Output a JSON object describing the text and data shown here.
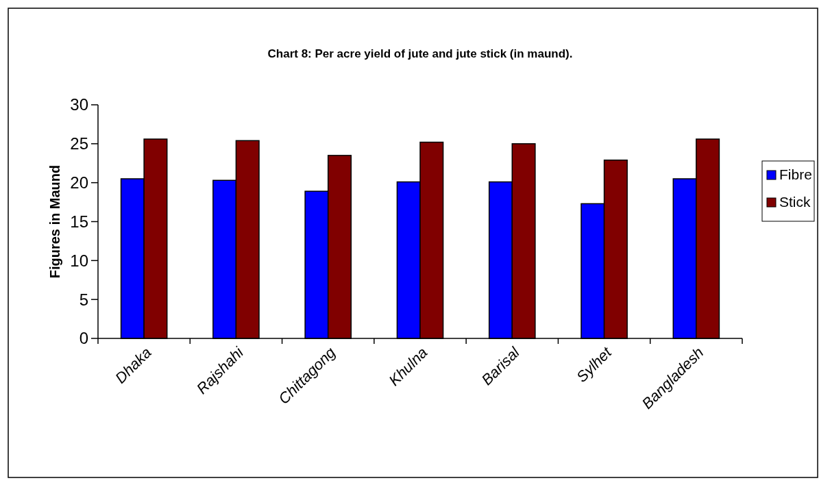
{
  "chart_data": {
    "type": "bar",
    "title": "Chart 8: Per acre yield of jute and jute stick (in maund).",
    "ylabel": "Figures in Maund",
    "categories": [
      "Dhaka",
      "Rajshahi",
      "Chittagong",
      "Khulna",
      "Barisal",
      "Sylhet",
      "Bangladesh"
    ],
    "series": [
      {
        "name": "Fibre",
        "color": "#0000ff",
        "values": [
          20.5,
          20.3,
          18.9,
          20.1,
          20.1,
          17.3,
          20.5
        ]
      },
      {
        "name": "Stick",
        "color": "#800000",
        "values": [
          25.6,
          25.4,
          23.5,
          25.2,
          25.0,
          22.9,
          25.6
        ]
      }
    ],
    "ylim": [
      0,
      30
    ],
    "yticks": [
      0,
      5,
      10,
      15,
      20,
      25,
      30
    ],
    "legend": "right"
  }
}
